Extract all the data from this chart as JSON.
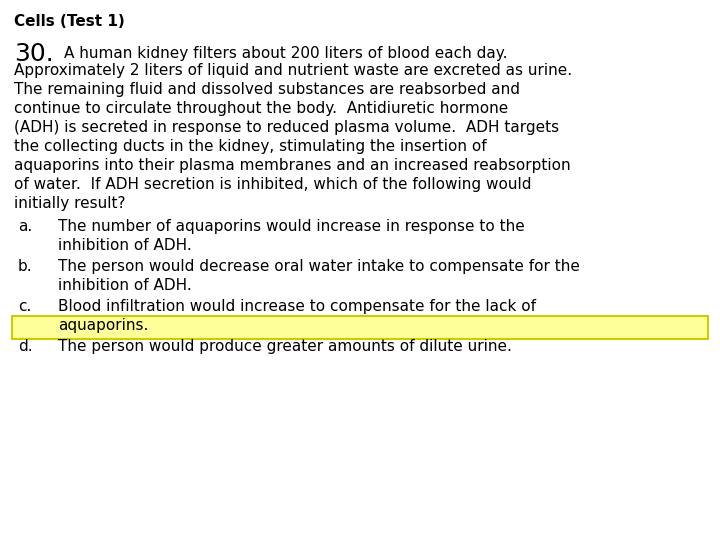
{
  "title": "Cells (Test 1)",
  "question_number": "30.",
  "q_line1": "A human kidney filters about 200 liters of blood each day.",
  "question_lines": [
    "Approximately 2 liters of liquid and nutrient waste are excreted as urine.",
    "The remaining fluid and dissolved substances are reabsorbed and",
    "continue to circulate throughout the body.  Antidiuretic hormone",
    "(ADH) is secreted in response to reduced plasma volume.  ADH targets",
    "the collecting ducts in the kidney, stimulating the insertion of",
    "aquaporins into their plasma membranes and an increased reabsorption",
    "of water.  If ADH secretion is inhibited, which of the following would",
    "initially result?"
  ],
  "choices": [
    {
      "label": "a.",
      "line1": "The number of aquaporins would increase in response to the",
      "line2": "inhibition of ADH.",
      "highlight": false
    },
    {
      "label": "b.",
      "line1": "The person would decrease oral water intake to compensate for the",
      "line2": "inhibition of ADH.",
      "highlight": false
    },
    {
      "label": "c.",
      "line1": "Blood infiltration would increase to compensate for the lack of",
      "line2": "aquaporins.",
      "highlight": true
    },
    {
      "label": "d.",
      "line1": "The person would produce greater amounts of dilute urine.",
      "line2": "",
      "highlight": false
    }
  ],
  "background_color": "#ffffff",
  "text_color": "#000000",
  "highlight_color": "#ffff99",
  "highlight_border_color": "#cccc00",
  "font_size_title": 11,
  "font_size_number": 18,
  "font_size_body": 11
}
